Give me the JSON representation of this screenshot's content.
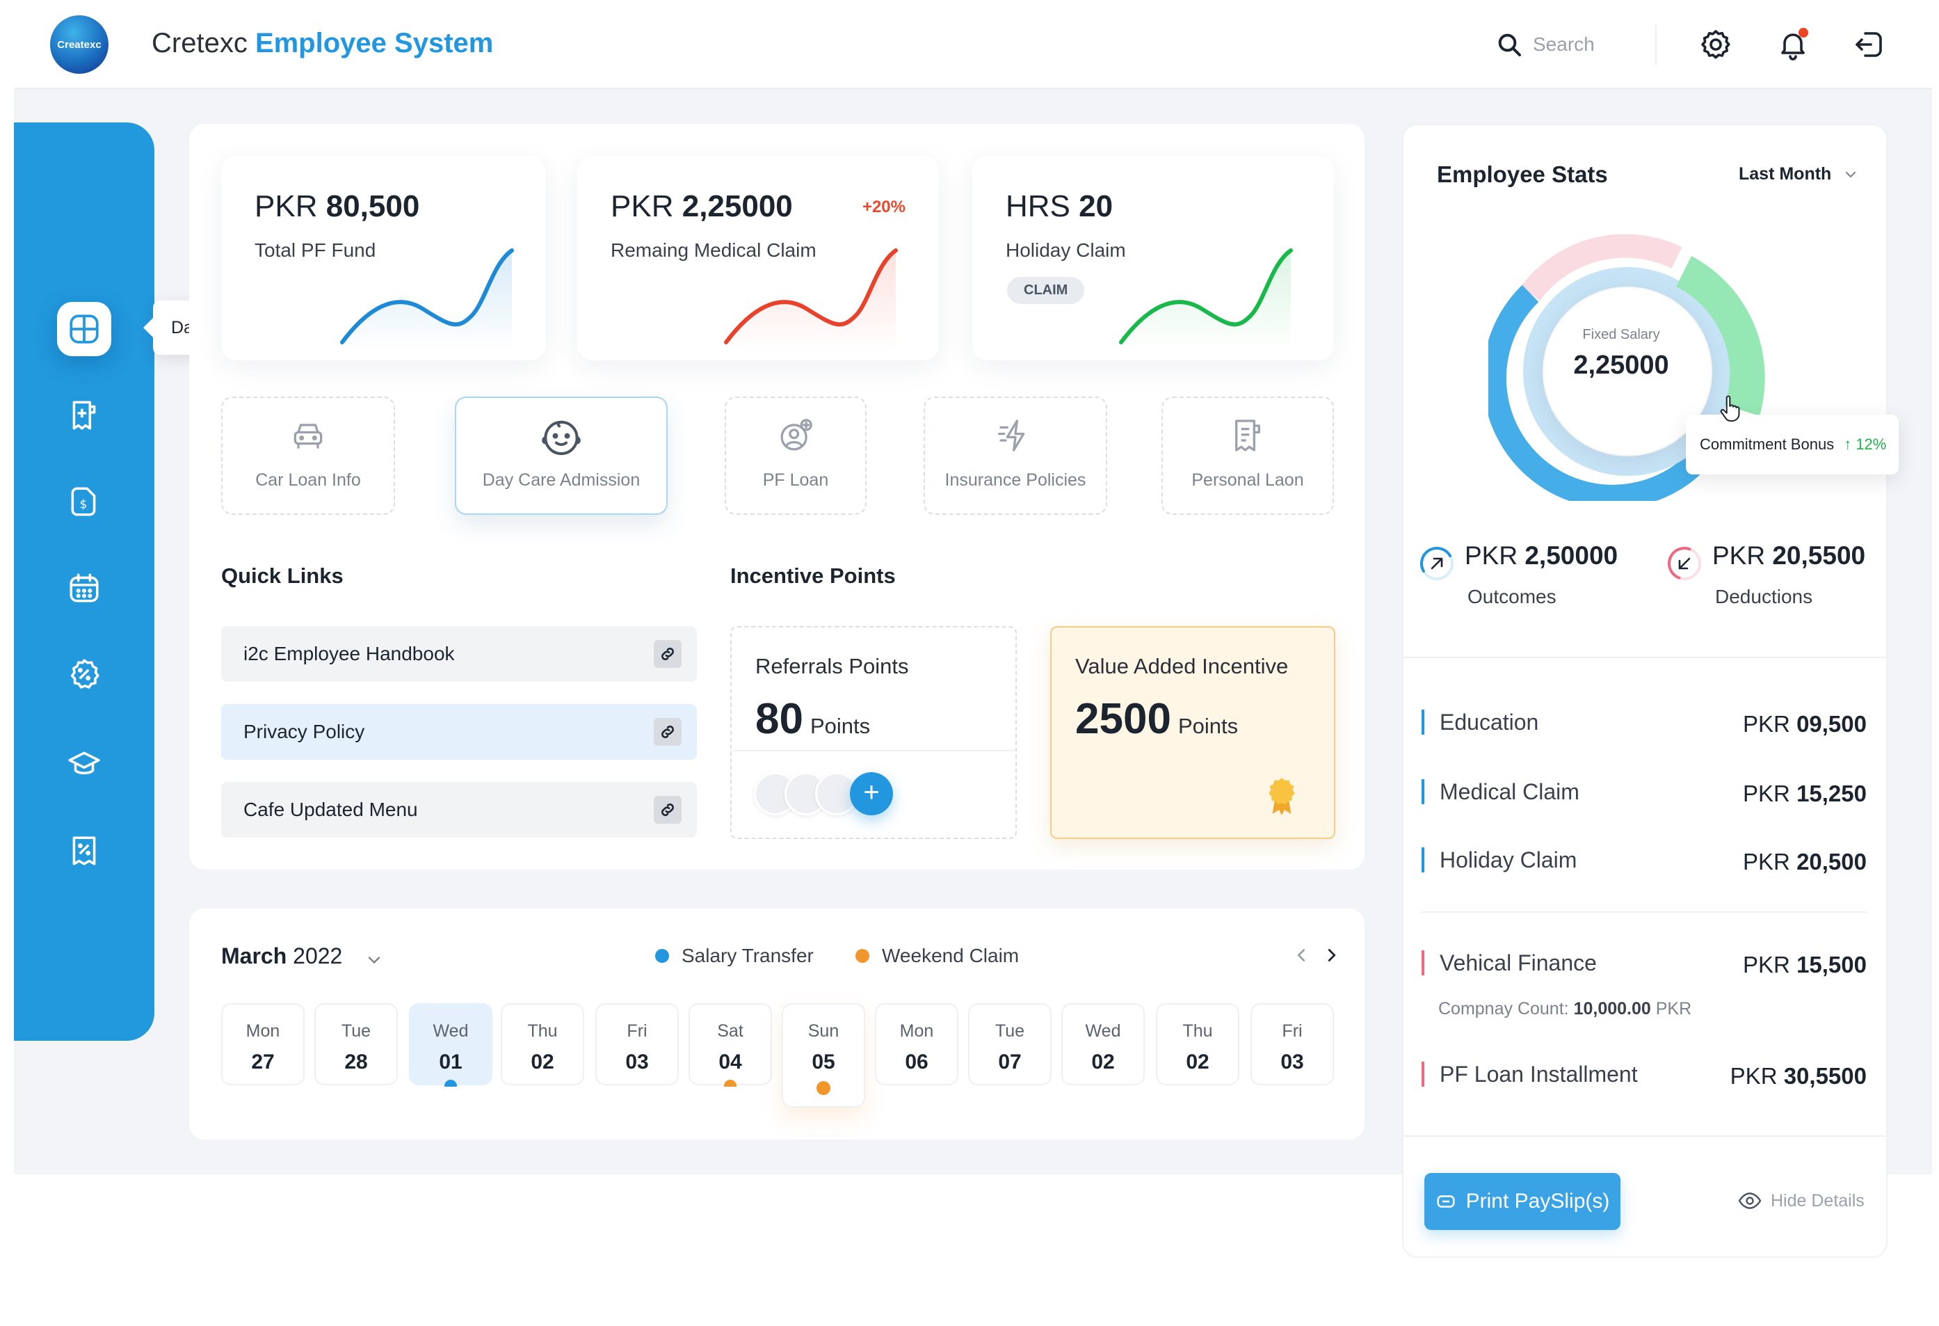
{
  "header": {
    "logo_text": "Createxc",
    "title_light": "Cretexc",
    "title_bold": "Employee System",
    "search_placeholder": "Search"
  },
  "sidebar": {
    "items": [
      {
        "icon": "dashboard-icon",
        "active": true
      },
      {
        "icon": "medical-claim-icon"
      },
      {
        "icon": "payment-doc-icon"
      },
      {
        "icon": "calendar-icon"
      },
      {
        "icon": "discount-badge-icon"
      },
      {
        "icon": "education-cap-icon"
      },
      {
        "icon": "tax-receipt-icon"
      }
    ],
    "tooltip": "Dashboard"
  },
  "stats": [
    {
      "currency": "PKR",
      "value": "80,500",
      "label": "Total PF Fund",
      "color": "#1e8ad6"
    },
    {
      "currency": "PKR",
      "value": "2,25000",
      "label": "Remaing Medical Claim",
      "badge": "+20%",
      "color": "#e8422a"
    },
    {
      "currency": "HRS",
      "value": "20",
      "label": "Holiday Claim",
      "chip": "CLAIM",
      "color": "#19b84a"
    }
  ],
  "services": [
    {
      "label": "Car Loan Info",
      "icon": "car-icon"
    },
    {
      "label": "Day Care Admission",
      "icon": "baby-face-icon",
      "active": true
    },
    {
      "label": "PF Loan",
      "icon": "user-add-icon"
    },
    {
      "label": "Insurance Policies",
      "icon": "lightning-icon"
    },
    {
      "label": "Personal Laon",
      "icon": "document-icon"
    }
  ],
  "quick_links": {
    "title": "Quick Links",
    "items": [
      {
        "label": "i2c Employee Handbook"
      },
      {
        "label": "Privacy Policy",
        "active": true
      },
      {
        "label": "Cafe Updated Menu"
      }
    ]
  },
  "incentive": {
    "title": "Incentive Points",
    "referrals": {
      "label": "Referrals Points",
      "value": "80",
      "unit": "Points"
    },
    "value_added": {
      "label": "Value Added Incentive",
      "value": "2500",
      "unit": "Points"
    }
  },
  "calendar": {
    "month": "March",
    "year": "2022",
    "legend": [
      {
        "label": "Salary Transfer",
        "color": "#2297e0"
      },
      {
        "label": "Weekend Claim",
        "color": "#f0962c"
      }
    ],
    "days": [
      {
        "name": "Mon",
        "num": "27"
      },
      {
        "name": "Tue",
        "num": "28"
      },
      {
        "name": "Wed",
        "num": "01",
        "selected": true,
        "dot": "#2297e0"
      },
      {
        "name": "Thu",
        "num": "02"
      },
      {
        "name": "Fri",
        "num": "03"
      },
      {
        "name": "Sat",
        "num": "04",
        "dot": "#f0962c"
      },
      {
        "name": "Sun",
        "num": "05",
        "dot": "#f0962c",
        "tall": true
      },
      {
        "name": "Mon",
        "num": "06"
      },
      {
        "name": "Tue",
        "num": "07"
      },
      {
        "name": "Wed",
        "num": "02"
      },
      {
        "name": "Thu",
        "num": "02"
      },
      {
        "name": "Fri",
        "num": "03"
      }
    ]
  },
  "employee_stats": {
    "title": "Employee Stats",
    "period": "Last Month",
    "donut_label": "Fixed Salary",
    "donut_value": "2,25000",
    "bonus_label": "Commitment Bonus",
    "bonus_change": "12%",
    "outcomes": {
      "currency": "PKR",
      "value": "2,50000",
      "label": "Outcomes"
    },
    "deductions": {
      "currency": "PKR",
      "value": "20,5500",
      "label": "Deductions"
    },
    "breakdown": [
      {
        "name": "Education",
        "currency": "PKR",
        "amount": "09,500",
        "color": "#2297e0"
      },
      {
        "name": "Medical Claim",
        "currency": "PKR",
        "amount": "15,250",
        "color": "#2297e0"
      },
      {
        "name": "Holiday Claim",
        "currency": "PKR",
        "amount": "20,500",
        "color": "#2297e0"
      },
      {
        "name": "Vehical Finance",
        "currency": "PKR",
        "amount": "15,500",
        "color": "#ec6b82"
      },
      {
        "name": "PF Loan Installment",
        "currency": "PKR",
        "amount": "30,5500",
        "color": "#ec6b82"
      }
    ],
    "company_count_label": "Compnay Count:",
    "company_count_value": "10,000.00",
    "company_count_unit": "PKR",
    "print_label": "Print PaySlip(s)",
    "hide_label": "Hide Details"
  }
}
